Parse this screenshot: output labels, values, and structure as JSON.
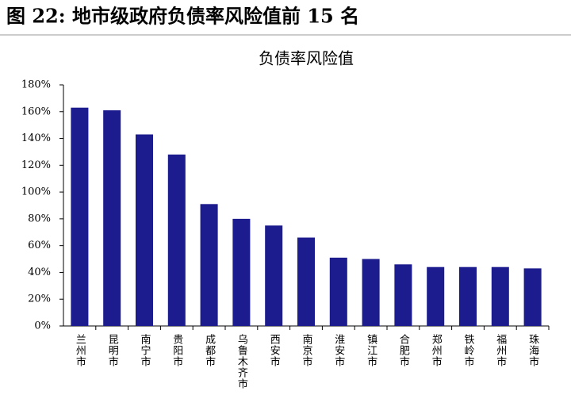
{
  "header": "图 22:  地市级政府负债率风险值前 15 名",
  "chart_data": {
    "type": "bar",
    "title": "负债率风险值",
    "categories": [
      "兰州市",
      "昆明市",
      "南宁市",
      "贵阳市",
      "成都市",
      "乌鲁木齐市",
      "西安市",
      "南京市",
      "淮安市",
      "镇江市",
      "合肥市",
      "郑州市",
      "铁岭市",
      "福州市",
      "珠海市"
    ],
    "values": [
      163,
      161,
      143,
      128,
      91,
      80,
      75,
      66,
      51,
      50,
      46,
      44,
      44,
      44,
      43
    ],
    "color": "#1c1c8e",
    "ylim": [
      0,
      180
    ],
    "yticks": [
      {
        "value": 0,
        "label": "0%"
      },
      {
        "value": 20,
        "label": "20%"
      },
      {
        "value": 40,
        "label": "40%"
      },
      {
        "value": 60,
        "label": "60%"
      },
      {
        "value": 80,
        "label": "80%"
      },
      {
        "value": 100,
        "label": "100%"
      },
      {
        "value": 120,
        "label": "120%"
      },
      {
        "value": 140,
        "label": "140%"
      },
      {
        "value": 160,
        "label": "160%"
      },
      {
        "value": 180,
        "label": "180%"
      }
    ],
    "grid": false
  }
}
